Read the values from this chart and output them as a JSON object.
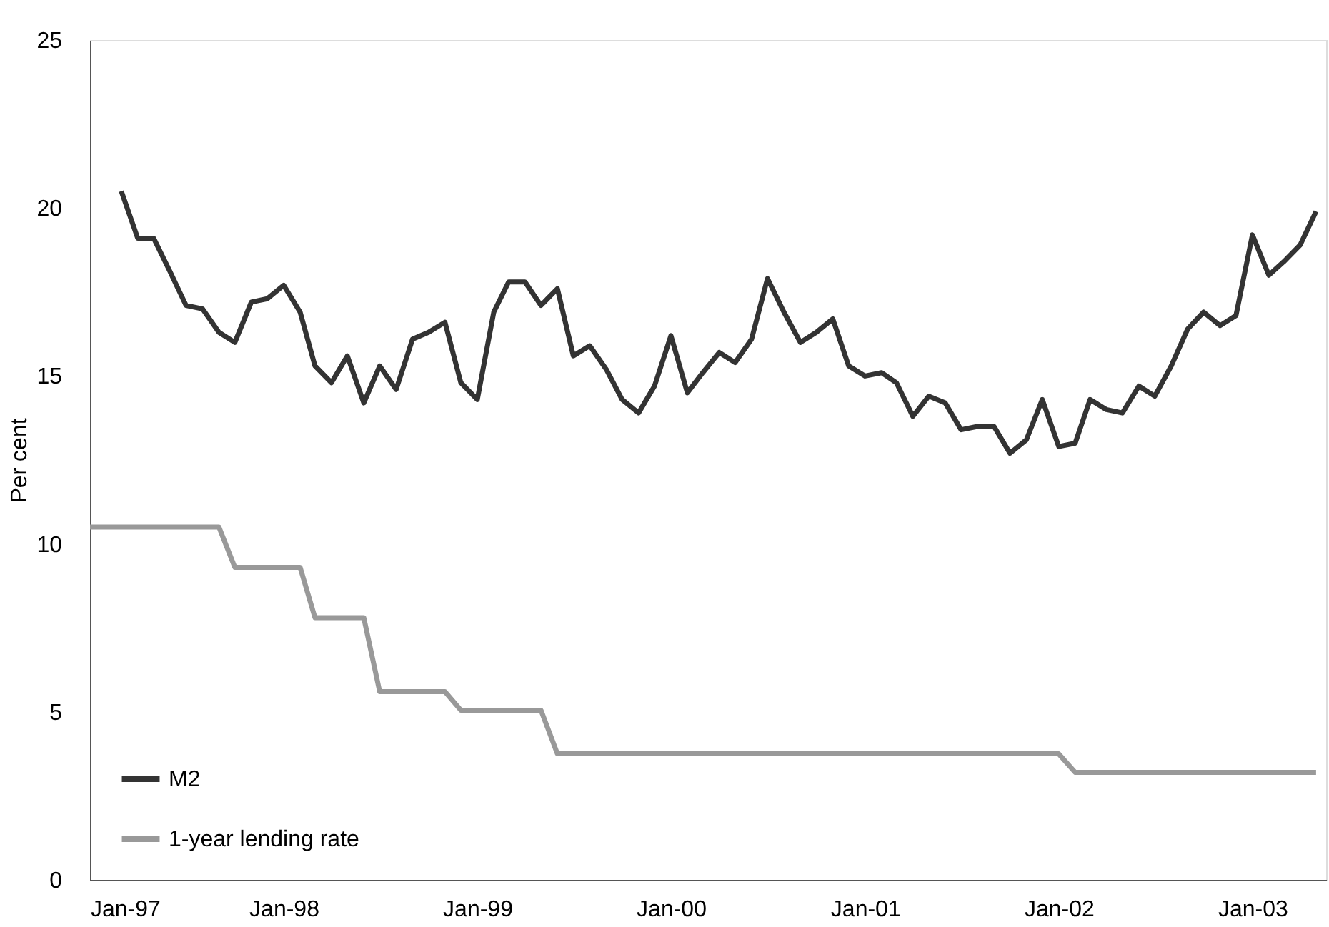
{
  "chart_data": {
    "type": "line",
    "ylabel": "Per cent",
    "ylim": [
      0,
      25
    ],
    "yticks": [
      0,
      5,
      10,
      15,
      20,
      25
    ],
    "xlim": [
      "1997-01",
      "2003-05-20"
    ],
    "xticks": [
      {
        "value": "1997-01",
        "label": "Jan-97"
      },
      {
        "value": "1998-01",
        "label": "Jan-98"
      },
      {
        "value": "1999-01",
        "label": "Jan-99"
      },
      {
        "value": "2000-01",
        "label": "Jan-00"
      },
      {
        "value": "2001-01",
        "label": "Jan-01"
      },
      {
        "value": "2002-01",
        "label": "Jan-02"
      },
      {
        "value": "2003-01",
        "label": "Jan-03"
      }
    ],
    "x": [
      "1997-01",
      "1997-02",
      "1997-03",
      "1997-04",
      "1997-05",
      "1997-06",
      "1997-07",
      "1997-08",
      "1997-09",
      "1997-10",
      "1997-11",
      "1997-12",
      "1998-01",
      "1998-02",
      "1998-03",
      "1998-04",
      "1998-05",
      "1998-06",
      "1998-07",
      "1998-08",
      "1998-09",
      "1998-10",
      "1998-11",
      "1998-12",
      "1999-01",
      "1999-02",
      "1999-03",
      "1999-04",
      "1999-05",
      "1999-06",
      "1999-07",
      "1999-08",
      "1999-09",
      "1999-10",
      "1999-11",
      "1999-12",
      "2000-01",
      "2000-02",
      "2000-03",
      "2000-04",
      "2000-05",
      "2000-06",
      "2000-07",
      "2000-08",
      "2000-09",
      "2000-10",
      "2000-11",
      "2000-12",
      "2001-01",
      "2001-02",
      "2001-03",
      "2001-04",
      "2001-05",
      "2001-06",
      "2001-07",
      "2001-08",
      "2001-09",
      "2001-10",
      "2001-11",
      "2001-12",
      "2002-01",
      "2002-02",
      "2002-03",
      "2002-04",
      "2002-05",
      "2002-06",
      "2002-07",
      "2002-08",
      "2002-09",
      "2002-10",
      "2002-11",
      "2002-12",
      "2003-01",
      "2003-02",
      "2003-03",
      "2003-04",
      "2003-05"
    ],
    "series": [
      {
        "name": "M2",
        "color": "#333333",
        "values": [
          null,
          null,
          20.5,
          19.1,
          19.1,
          18.1,
          17.1,
          17.0,
          16.3,
          16.0,
          17.2,
          17.3,
          17.7,
          16.9,
          15.3,
          14.8,
          15.6,
          14.2,
          15.3,
          14.6,
          16.1,
          16.3,
          16.6,
          14.8,
          14.3,
          16.9,
          17.8,
          17.8,
          17.1,
          17.6,
          15.6,
          15.9,
          15.2,
          14.3,
          13.9,
          14.7,
          16.2,
          14.5,
          15.1,
          15.7,
          15.4,
          16.1,
          17.9,
          16.9,
          16.0,
          16.3,
          16.7,
          15.3,
          15.0,
          15.1,
          14.8,
          13.8,
          14.4,
          14.2,
          13.4,
          13.5,
          13.5,
          12.7,
          13.1,
          14.3,
          12.9,
          13.0,
          14.3,
          14.0,
          13.9,
          14.7,
          14.4,
          15.3,
          16.4,
          16.9,
          16.5,
          16.8,
          19.2,
          18.0,
          18.4,
          18.9,
          19.9
        ]
      },
      {
        "name": "1-year lending rate",
        "color": "#999999",
        "values": [
          10.5,
          10.5,
          10.5,
          10.5,
          10.5,
          10.5,
          10.5,
          10.5,
          10.5,
          9.3,
          9.3,
          9.3,
          9.3,
          9.3,
          7.8,
          7.8,
          7.8,
          7.8,
          5.6,
          5.6,
          5.6,
          5.6,
          5.6,
          5.05,
          5.05,
          5.05,
          5.05,
          5.05,
          5.05,
          3.75,
          3.75,
          3.75,
          3.75,
          3.75,
          3.75,
          3.75,
          3.75,
          3.75,
          3.75,
          3.75,
          3.75,
          3.75,
          3.75,
          3.75,
          3.75,
          3.75,
          3.75,
          3.75,
          3.75,
          3.75,
          3.75,
          3.75,
          3.75,
          3.75,
          3.75,
          3.75,
          3.75,
          3.75,
          3.75,
          3.75,
          3.75,
          3.2,
          3.2,
          3.2,
          3.2,
          3.2,
          3.2,
          3.2,
          3.2,
          3.2,
          3.2,
          3.2,
          3.2,
          3.2,
          3.2,
          3.2,
          3.2
        ]
      }
    ],
    "legend": "bottom left",
    "grid": false,
    "marker": "none",
    "line_style": "solid"
  }
}
